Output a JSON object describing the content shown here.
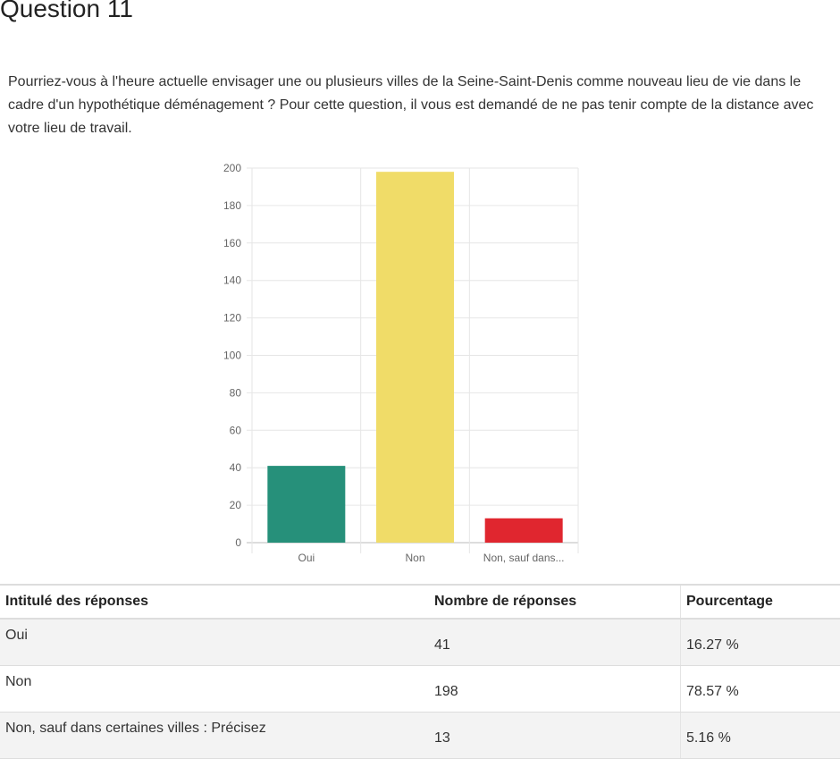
{
  "page": {
    "title": "Question 11",
    "question": "Pourriez-vous à l'heure actuelle envisager une ou plusieurs villes de la Seine-Saint-Denis comme nouveau lieu de vie dans le cadre d'un hypothétique déménagement ? Pour cette question, il vous est demandé de ne pas tenir compte de la distance avec votre lieu de travail."
  },
  "chart_data": {
    "type": "bar",
    "categories": [
      "Oui",
      "Non",
      "Non, sauf dans..."
    ],
    "values": [
      41,
      198,
      13
    ],
    "colors": [
      "#26907a",
      "#f0dc68",
      "#e0262f"
    ],
    "title": "",
    "xlabel": "",
    "ylabel": "",
    "ylim": [
      0,
      200
    ],
    "yticks": [
      0,
      20,
      40,
      60,
      80,
      100,
      120,
      140,
      160,
      180,
      200
    ],
    "grid": true,
    "legend": "none"
  },
  "table": {
    "headers": [
      "Intitulé des réponses",
      "Nombre de réponses",
      "Pourcentage"
    ],
    "rows": [
      {
        "label": "Oui",
        "count": "41",
        "percent": "16.27 %"
      },
      {
        "label": "Non",
        "count": "198",
        "percent": "78.57 %"
      },
      {
        "label": "Non, sauf dans certaines villes : Précisez",
        "count": "13",
        "percent": "5.16 %"
      }
    ]
  }
}
